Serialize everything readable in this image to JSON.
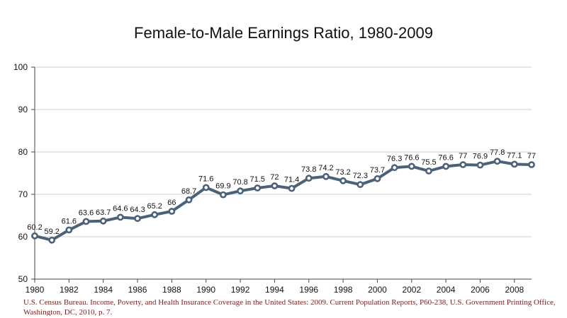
{
  "chart_data": {
    "type": "line",
    "title": "Female-to-Male Earnings Ratio, 1980-2009",
    "xlabel": "",
    "ylabel": "",
    "x": [
      1980,
      1981,
      1982,
      1983,
      1984,
      1985,
      1986,
      1987,
      1988,
      1989,
      1990,
      1991,
      1992,
      1993,
      1994,
      1995,
      1996,
      1997,
      1998,
      1999,
      2000,
      2001,
      2002,
      2003,
      2004,
      2005,
      2006,
      2007,
      2008,
      2009
    ],
    "series": [
      {
        "values": [
          60.2,
          59.2,
          61.6,
          63.6,
          63.7,
          64.6,
          64.3,
          65.2,
          66,
          68.7,
          71.6,
          69.9,
          70.8,
          71.5,
          72,
          71.4,
          73.8,
          74.2,
          73.2,
          72.3,
          73.7,
          76.3,
          76.6,
          75.5,
          76.6,
          77,
          76.9,
          77.8,
          77.1,
          77
        ]
      }
    ],
    "xlim": [
      1980,
      2009
    ],
    "ylim": [
      50,
      100
    ],
    "x_ticks": [
      "1980",
      "1982",
      "1984",
      "1986",
      "1988",
      "1990",
      "1992",
      "1994",
      "1996",
      "1998",
      "2000",
      "2002",
      "2004",
      "2006",
      "2008"
    ],
    "y_ticks": [
      "50",
      "60",
      "70",
      "80",
      "90",
      "100"
    ],
    "grid": "horizontal",
    "line_color": "#4a6178",
    "marker_fill": "#ffffff",
    "data_labels": true
  },
  "source_note": "U.S. Census Bureau. Income, Poverty, and Health Insurance Coverage in the United States: 2009. Current Population Reports, P60-238, U.S. Government Printing Office, Washington, DC, 2010, p. 7."
}
